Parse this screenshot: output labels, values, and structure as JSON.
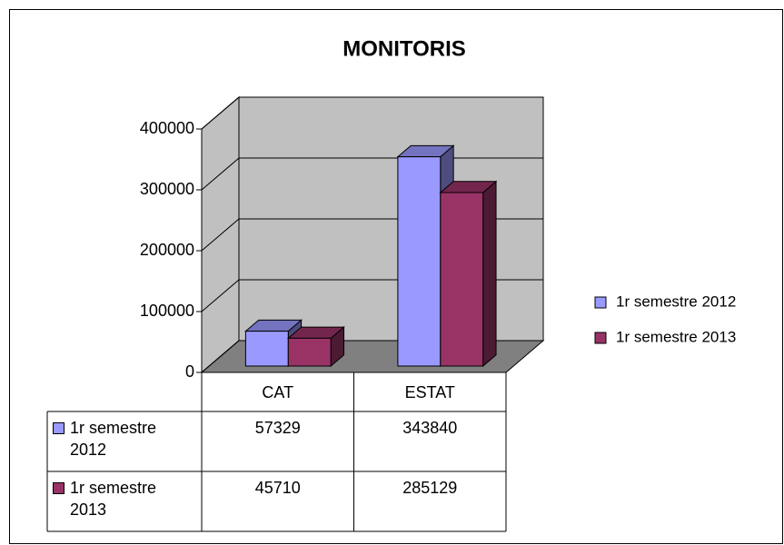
{
  "chart_data": {
    "type": "bar3d",
    "title": "MONITORIS",
    "categories": [
      "CAT",
      "ESTAT"
    ],
    "series": [
      {
        "name": "1r semestre 2012",
        "color": "#9999ff",
        "values": [
          57329,
          343840
        ]
      },
      {
        "name": "1r semestre 2013",
        "color": "#993366",
        "values": [
          45710,
          285129
        ]
      }
    ],
    "ylim": [
      0,
      400000
    ],
    "yticks": [
      0,
      100000,
      200000,
      300000,
      400000
    ],
    "grid": true,
    "legend": "right",
    "data_table": true
  }
}
